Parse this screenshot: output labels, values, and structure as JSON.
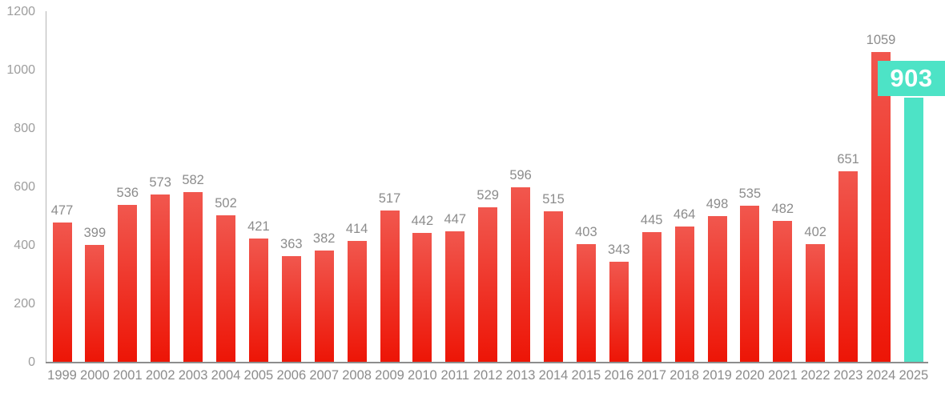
{
  "chart_data": {
    "type": "bar",
    "categories": [
      "1999",
      "2000",
      "2001",
      "2002",
      "2003",
      "2004",
      "2005",
      "2006",
      "2007",
      "2008",
      "2009",
      "2010",
      "2011",
      "2012",
      "2013",
      "2014",
      "2015",
      "2016",
      "2017",
      "2018",
      "2019",
      "2020",
      "2021",
      "2022",
      "2023",
      "2024",
      "2025"
    ],
    "values": [
      477,
      399,
      536,
      573,
      582,
      502,
      421,
      363,
      382,
      414,
      517,
      442,
      447,
      529,
      596,
      515,
      403,
      343,
      445,
      464,
      498,
      535,
      482,
      402,
      651,
      1059,
      903
    ],
    "title": "",
    "xlabel": "",
    "ylabel": "",
    "ylim": [
      0,
      1200
    ],
    "y_ticks": [
      0,
      200,
      400,
      600,
      800,
      1000,
      1200
    ],
    "grid": false,
    "legend_position": "none",
    "bar_gradient_top": "#F1574E",
    "bar_gradient_bottom": "#ED1506",
    "highlight": {
      "category": "2025",
      "value": 903,
      "label": "903",
      "color": "#4DE3C6",
      "text_color": "#FFFFFF"
    },
    "value_label_color": "#8C8C8C",
    "tick_label_color": "#9D9D9D",
    "axis_color": "#8D8D8D"
  }
}
